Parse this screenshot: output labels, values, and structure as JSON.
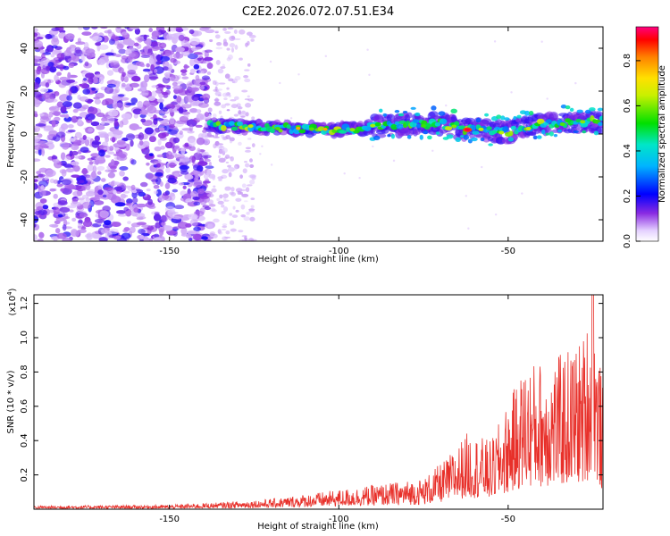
{
  "title": "C2E2.2026.072.07.51.E34",
  "chart_data": [
    {
      "type": "heatmap",
      "name": "spectrogram",
      "xlabel": "Height of straight line (km)",
      "ylabel": "Frequency (Hz)",
      "xlim": [
        -190,
        -22
      ],
      "ylim": [
        -50,
        50
      ],
      "xticks": [
        -150,
        -100,
        -50
      ],
      "yticks": [
        -40,
        -20,
        0,
        20,
        40
      ],
      "colorbar": {
        "label": "Normalized spectral amplitude",
        "range": [
          0,
          0.95
        ],
        "ticks": [
          0.0,
          0.2,
          0.4,
          0.6,
          0.8
        ]
      },
      "features": {
        "noise_region_km": [
          -190,
          -138
        ],
        "sparse_noise_km": [
          -138,
          -125
        ],
        "signal_track_start_km": -138,
        "signal_track_center_hz": [
          {
            "x": -138,
            "y": 4
          },
          {
            "x": -120,
            "y": 3
          },
          {
            "x": -100,
            "y": 2
          },
          {
            "x": -85,
            "y": 4
          },
          {
            "x": -70,
            "y": 5
          },
          {
            "x": -62,
            "y": 2
          },
          {
            "x": -50,
            "y": 1
          },
          {
            "x": -40,
            "y": 5
          },
          {
            "x": -22,
            "y": 6
          }
        ],
        "peak_km": -62,
        "peak_hz": 2
      }
    },
    {
      "type": "line",
      "name": "snr",
      "xlabel": "Height of straight line (km)",
      "ylabel": "SNR (10 * v/v)",
      "yscale_label": "(x10",
      "yscale_exp": "4",
      "yscale_suffix": ")",
      "xlim": [
        -190,
        -22
      ],
      "ylim": [
        0,
        1.25
      ],
      "xticks": [
        -150,
        -100,
        -50
      ],
      "yticks": [
        0.2,
        0.4,
        0.6,
        0.8,
        1.0,
        1.2
      ],
      "color": "#e8302a",
      "envelope": [
        {
          "x": -190,
          "y": 0.02
        },
        {
          "x": -150,
          "y": 0.025
        },
        {
          "x": -135,
          "y": 0.04
        },
        {
          "x": -120,
          "y": 0.06
        },
        {
          "x": -105,
          "y": 0.1
        },
        {
          "x": -90,
          "y": 0.14
        },
        {
          "x": -75,
          "y": 0.18
        },
        {
          "x": -68,
          "y": 0.3
        },
        {
          "x": -62,
          "y": 0.45
        },
        {
          "x": -55,
          "y": 0.4
        },
        {
          "x": -45,
          "y": 0.85
        },
        {
          "x": -35,
          "y": 0.9
        },
        {
          "x": -28,
          "y": 1.0
        },
        {
          "x": -25,
          "y": 1.25
        },
        {
          "x": -22,
          "y": 0.7
        }
      ]
    }
  ]
}
